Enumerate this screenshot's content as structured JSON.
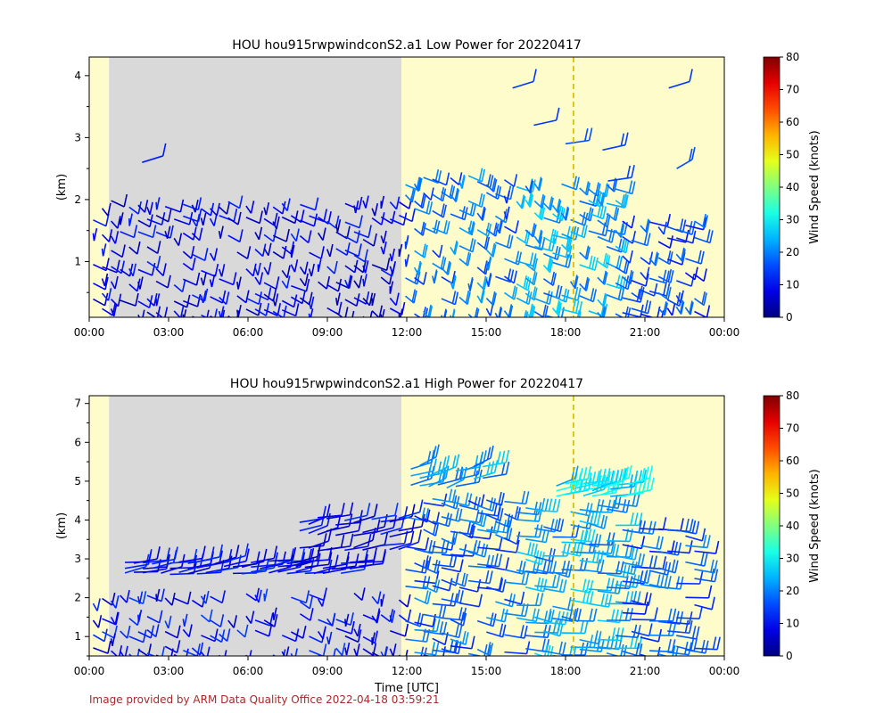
{
  "credit": "Image provided by ARM Data Quality Office 2022-04-18 03:59:21",
  "colors": {
    "night": "#fffccc",
    "missing": "#d9d9d9",
    "sunrise_line": "#d4b800"
  },
  "chart_data": [
    {
      "type": "wind-barb",
      "title": "HOU hou915rwpwindconS2.a1 Low Power for 20220417",
      "xlabel": "",
      "ylabel": "(km)",
      "xticks": [
        "00:00",
        "03:00",
        "06:00",
        "09:00",
        "12:00",
        "15:00",
        "18:00",
        "21:00",
        "00:00"
      ],
      "xlim_hours": [
        0,
        24
      ],
      "ylim": [
        0.1,
        4.3
      ],
      "yticks": [
        1,
        2,
        3,
        4
      ],
      "shaded_regions": [
        {
          "kind": "night",
          "start_hour": 0,
          "end_hour": 0.75
        },
        {
          "kind": "missing",
          "start_hour": 0.75,
          "end_hour": 11.8
        },
        {
          "kind": "night",
          "start_hour": 11.8,
          "end_hour": 24
        }
      ],
      "vline_hour": 18.3,
      "data_end_hour": 23,
      "colorbar": {
        "label": "Wind Speed (knots)",
        "ticks": [
          "0",
          "10",
          "20",
          "30",
          "40",
          "50",
          "60",
          "70",
          "80"
        ],
        "range": [
          0,
          80
        ]
      },
      "segments": [
        {
          "start_hour": 0,
          "end_hour": 11.8,
          "bottom_km": 0.1,
          "top_km": 2.1,
          "mean_speed_kt": 8,
          "dir_deg": 200
        },
        {
          "start_hour": 11.8,
          "end_hour": 16,
          "bottom_km": 0.1,
          "top_km": 2.5,
          "mean_speed_kt": 18,
          "dir_deg": 200
        },
        {
          "start_hour": 16,
          "end_hour": 20,
          "bottom_km": 0.1,
          "top_km": 2.4,
          "mean_speed_kt": 22,
          "dir_deg": 210
        },
        {
          "start_hour": 20,
          "end_hour": 23,
          "bottom_km": 0.1,
          "top_km": 1.8,
          "mean_speed_kt": 15,
          "dir_deg": 210
        }
      ],
      "sparse_obs": [
        {
          "hour": 2.0,
          "km": 2.6,
          "speed_kt": 12,
          "dir_deg": 300
        },
        {
          "hour": 16.0,
          "km": 3.8,
          "speed_kt": 14,
          "dir_deg": 300
        },
        {
          "hour": 16.8,
          "km": 3.2,
          "speed_kt": 14,
          "dir_deg": 290
        },
        {
          "hour": 18.0,
          "km": 2.9,
          "speed_kt": 16,
          "dir_deg": 280
        },
        {
          "hour": 19.4,
          "km": 2.8,
          "speed_kt": 15,
          "dir_deg": 290
        },
        {
          "hour": 21.9,
          "km": 3.8,
          "speed_kt": 14,
          "dir_deg": 300
        },
        {
          "hour": 22.2,
          "km": 2.5,
          "speed_kt": 16,
          "dir_deg": 320
        },
        {
          "hour": 19.6,
          "km": 2.3,
          "speed_kt": 15,
          "dir_deg": 280
        }
      ]
    },
    {
      "type": "wind-barb",
      "title": "HOU hou915rwpwindconS2.a1 High Power for 20220417",
      "xlabel": "Time [UTC]",
      "ylabel": "(km)",
      "xticks": [
        "00:00",
        "03:00",
        "06:00",
        "09:00",
        "12:00",
        "15:00",
        "18:00",
        "21:00",
        "00:00"
      ],
      "xlim_hours": [
        0,
        24
      ],
      "ylim": [
        0.5,
        7.2
      ],
      "yticks": [
        1,
        2,
        3,
        4,
        5,
        6,
        7
      ],
      "shaded_regions": [
        {
          "kind": "night",
          "start_hour": 0,
          "end_hour": 0.75
        },
        {
          "kind": "missing",
          "start_hour": 0.75,
          "end_hour": 11.8
        },
        {
          "kind": "night",
          "start_hour": 11.8,
          "end_hour": 24
        }
      ],
      "vline_hour": 18.3,
      "data_end_hour": 23,
      "colorbar": {
        "label": "Wind Speed (knots)",
        "ticks": [
          "0",
          "10",
          "20",
          "30",
          "40",
          "50",
          "60",
          "70",
          "80"
        ],
        "range": [
          0,
          80
        ]
      },
      "segments": [
        {
          "start_hour": 0,
          "end_hour": 11.8,
          "bottom_km": 0.5,
          "top_km": 2.3,
          "mean_speed_kt": 10,
          "dir_deg": 200
        },
        {
          "start_hour": 1.2,
          "end_hour": 10.5,
          "bottom_km": 2.6,
          "top_km": 3.0,
          "mean_speed_kt": 9,
          "dir_deg": 280
        },
        {
          "start_hour": 7.8,
          "end_hour": 11.8,
          "bottom_km": 3.2,
          "top_km": 4.2,
          "mean_speed_kt": 10,
          "dir_deg": 290
        },
        {
          "start_hour": 11.8,
          "end_hour": 16,
          "bottom_km": 0.5,
          "top_km": 4.8,
          "mean_speed_kt": 17,
          "dir_deg": 230
        },
        {
          "start_hour": 12,
          "end_hour": 15,
          "bottom_km": 4.8,
          "top_km": 5.5,
          "mean_speed_kt": 22,
          "dir_deg": 300
        },
        {
          "start_hour": 16,
          "end_hour": 20,
          "bottom_km": 0.5,
          "top_km": 4.6,
          "mean_speed_kt": 22,
          "dir_deg": 240
        },
        {
          "start_hour": 17.5,
          "end_hour": 20.5,
          "bottom_km": 4.6,
          "top_km": 5.0,
          "mean_speed_kt": 27,
          "dir_deg": 290
        },
        {
          "start_hour": 20,
          "end_hour": 23,
          "bottom_km": 0.5,
          "top_km": 4.0,
          "mean_speed_kt": 16,
          "dir_deg": 240
        }
      ],
      "sparse_obs": []
    }
  ]
}
